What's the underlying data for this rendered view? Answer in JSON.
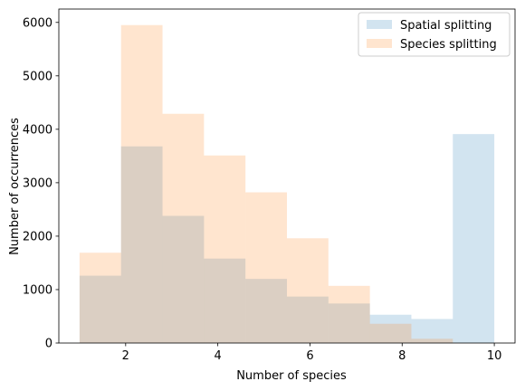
{
  "chart_data": {
    "type": "bar",
    "xlabel": "Number of species",
    "ylabel": "Number of occurrences",
    "xlim": [
      0.55,
      10.45
    ],
    "ylim": [
      0,
      6250
    ],
    "xticks": [
      2,
      4,
      6,
      8,
      10
    ],
    "yticks": [
      0,
      1000,
      2000,
      3000,
      4000,
      5000,
      6000
    ],
    "bin_edges": [
      1.0,
      1.9,
      2.8,
      3.7,
      4.6,
      5.5,
      6.4,
      7.3,
      8.2,
      9.1,
      10.0
    ],
    "grid": false,
    "legend_position": "top-right",
    "series": [
      {
        "name": "Spatial splitting",
        "color": "#1f77b4",
        "alpha": 0.2,
        "values": [
          1260,
          3680,
          2380,
          1580,
          1200,
          870,
          740,
          530,
          450,
          3910
        ]
      },
      {
        "name": "Species splitting",
        "color": "#ff7f0e",
        "alpha": 0.2,
        "values": [
          1690,
          5950,
          4290,
          3510,
          2820,
          1960,
          1070,
          360,
          80,
          0
        ]
      }
    ]
  }
}
